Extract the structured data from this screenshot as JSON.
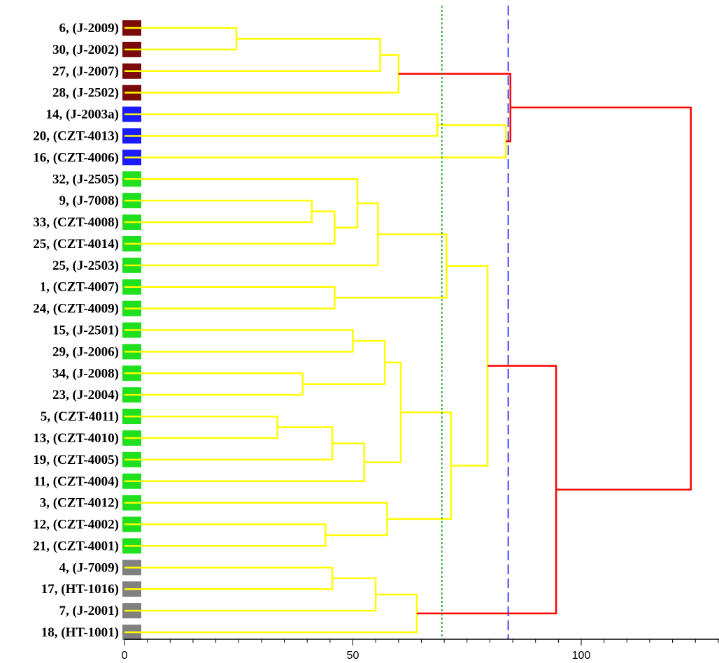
{
  "chart_data": {
    "type": "dendrogram",
    "orientation": "left-to-right",
    "leaves": [
      {
        "label": "6, (J-2009)",
        "group": "brown"
      },
      {
        "label": "30, (J-2002)",
        "group": "brown"
      },
      {
        "label": "27, (J-2007)",
        "group": "brown"
      },
      {
        "label": "28, (J-2502)",
        "group": "brown"
      },
      {
        "label": "14, (J-2003a)",
        "group": "blue"
      },
      {
        "label": "20, (CZT-4013)",
        "group": "blue"
      },
      {
        "label": "16, (CZT-4006)",
        "group": "blue"
      },
      {
        "label": "32, (J-2505)",
        "group": "green"
      },
      {
        "label": "9, (J-7008)",
        "group": "green"
      },
      {
        "label": "33, (CZT-4008)",
        "group": "green"
      },
      {
        "label": "25, (CZT-4014)",
        "group": "green"
      },
      {
        "label": "25, (J-2503)",
        "group": "green"
      },
      {
        "label": "1, (CZT-4007)",
        "group": "green"
      },
      {
        "label": "24, (CZT-4009)",
        "group": "green"
      },
      {
        "label": "15, (J-2501)",
        "group": "green"
      },
      {
        "label": "29, (J-2006)",
        "group": "green"
      },
      {
        "label": "34, (J-2008)",
        "group": "green"
      },
      {
        "label": "23, (J-2004)",
        "group": "green"
      },
      {
        "label": "5, (CZT-4011)",
        "group": "green"
      },
      {
        "label": "13, (CZT-4010)",
        "group": "green"
      },
      {
        "label": "19, (CZT-4005)",
        "group": "green"
      },
      {
        "label": "11, (CZT-4004)",
        "group": "green"
      },
      {
        "label": "3, (CZT-4012)",
        "group": "green"
      },
      {
        "label": "12, (CZT-4002)",
        "group": "green"
      },
      {
        "label": "21, (CZT-4001)",
        "group": "green"
      },
      {
        "label": "4, (J-7009)",
        "group": "gray"
      },
      {
        "label": "17, (HT-1016)",
        "group": "gray"
      },
      {
        "label": "7, (J-2001)",
        "group": "gray"
      },
      {
        "label": "18, (HT-1001)",
        "group": "gray"
      }
    ],
    "group_colors": {
      "brown": "#7b0a0a",
      "blue": "#1a1aff",
      "green": "#1ee01e",
      "gray": "#808080"
    },
    "merges": [
      {
        "id": "n1",
        "left": 0,
        "right": 1,
        "height": 24.5,
        "color": "#ffff00"
      },
      {
        "id": "n2",
        "left": "n1",
        "right": 2,
        "height": 56.0,
        "color": "#ffff00"
      },
      {
        "id": "n3",
        "left": "n2",
        "right": 3,
        "height": 60.0,
        "color": "#ffff00"
      },
      {
        "id": "n4",
        "left": 4,
        "right": 5,
        "height": 68.5,
        "color": "#ffff00"
      },
      {
        "id": "n5",
        "left": "n4",
        "right": 6,
        "height": 83.5,
        "color": "#ffff00"
      },
      {
        "id": "n6",
        "left": "n3",
        "right": "n5",
        "height": 84.5,
        "color": "#ff0000"
      },
      {
        "id": "n7",
        "left": 8,
        "right": 9,
        "height": 41.0,
        "color": "#ffff00"
      },
      {
        "id": "n8",
        "left": "n7",
        "right": 10,
        "height": 46.0,
        "color": "#ffff00"
      },
      {
        "id": "n9",
        "left": 7,
        "right": "n8",
        "height": 51.0,
        "color": "#ffff00"
      },
      {
        "id": "n10",
        "left": "n9",
        "right": 11,
        "height": 55.5,
        "color": "#ffff00"
      },
      {
        "id": "n11",
        "left": 12,
        "right": 13,
        "height": 46.0,
        "color": "#ffff00"
      },
      {
        "id": "n12",
        "left": "n10",
        "right": "n11",
        "height": 70.5,
        "color": "#ffff00"
      },
      {
        "id": "n13",
        "left": 14,
        "right": 15,
        "height": 50.0,
        "color": "#ffff00"
      },
      {
        "id": "n14",
        "left": 16,
        "right": 17,
        "height": 39.0,
        "color": "#ffff00"
      },
      {
        "id": "n15",
        "left": "n13",
        "right": "n14",
        "height": 57.0,
        "color": "#ffff00"
      },
      {
        "id": "n16",
        "left": 18,
        "right": 19,
        "height": 33.5,
        "color": "#ffff00"
      },
      {
        "id": "n17",
        "left": "n16",
        "right": 20,
        "height": 45.5,
        "color": "#ffff00"
      },
      {
        "id": "n18",
        "left": "n17",
        "right": 21,
        "height": 52.5,
        "color": "#ffff00"
      },
      {
        "id": "n19",
        "left": "n15",
        "right": "n18",
        "height": 60.5,
        "color": "#ffff00"
      },
      {
        "id": "n20",
        "left": 23,
        "right": 24,
        "height": 44.0,
        "color": "#ffff00"
      },
      {
        "id": "n21",
        "left": 22,
        "right": "n20",
        "height": 57.5,
        "color": "#ffff00"
      },
      {
        "id": "n22",
        "left": "n19",
        "right": "n21",
        "height": 71.5,
        "color": "#ffff00"
      },
      {
        "id": "n23",
        "left": "n12",
        "right": "n22",
        "height": 79.5,
        "color": "#ffff00"
      },
      {
        "id": "n24",
        "left": 25,
        "right": 26,
        "height": 45.5,
        "color": "#ffff00"
      },
      {
        "id": "n25",
        "left": "n24",
        "right": 27,
        "height": 55.0,
        "color": "#ffff00"
      },
      {
        "id": "n26",
        "left": "n25",
        "right": 28,
        "height": 64.0,
        "color": "#ffff00"
      },
      {
        "id": "n27",
        "left": "n23",
        "right": "n26",
        "height": 94.5,
        "color": "#ff0000"
      },
      {
        "id": "n28",
        "left": "n6",
        "right": "n27",
        "height": 124.0,
        "color": "#ff0000"
      }
    ],
    "x_axis": {
      "range": [
        0,
        130
      ],
      "major_ticks": [
        0,
        50,
        100
      ],
      "tick_labels": [
        "0",
        "50",
        "100"
      ],
      "minor_tick_step": 5
    },
    "cut_lines": [
      {
        "value": 69.5,
        "color": "#009900",
        "style": "dotted"
      },
      {
        "value": 84.0,
        "color": "#0000ff",
        "style": "dashed"
      }
    ],
    "xlabel": "",
    "ylabel": "",
    "title": ""
  }
}
